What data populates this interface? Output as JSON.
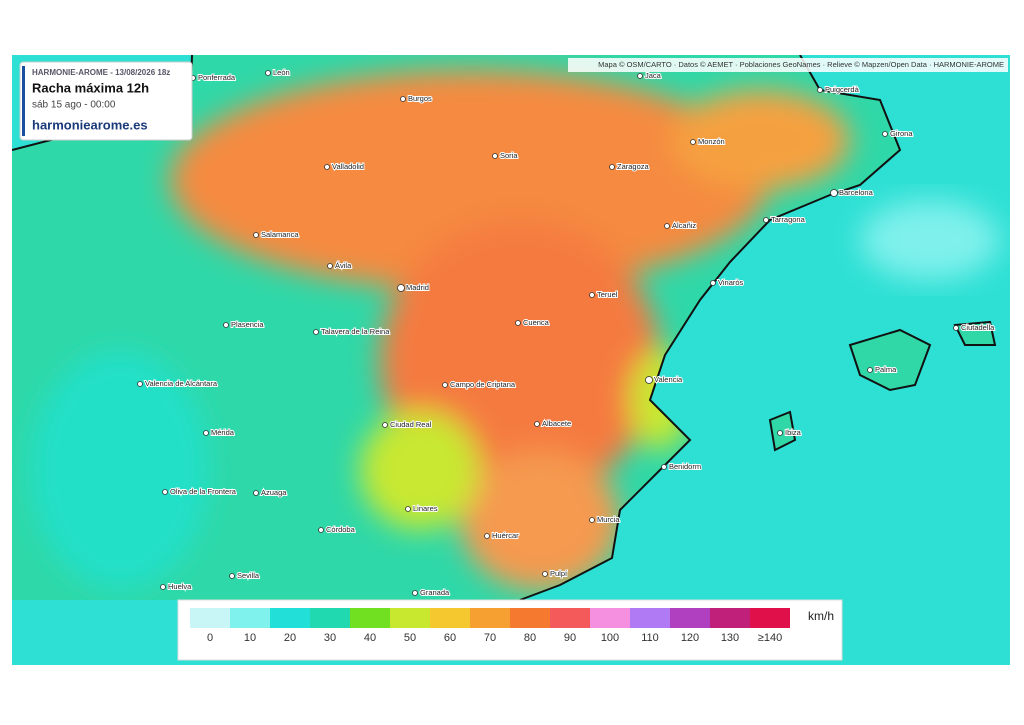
{
  "header": {
    "model": "HARMONIE-AROME - 13/08/2026 18z",
    "title": "Racha máxima 12h",
    "time": "sáb 15 ago - 00:00",
    "site": "harmoniearome.es"
  },
  "attribution": "Mapa © OSM/CARTO · Datos © AEMET · Poblaciones GeoNames · Relieve © Mapzen/Open Data · HARMONIE-AROME",
  "cities": [
    "Ponferrada",
    "León",
    "Burgos",
    "Jaca",
    "Puigcerdà",
    "Soria",
    "Monzón",
    "Girona",
    "Valladolid",
    "Zaragoza",
    "Barcelona",
    "Alcañiz",
    "Tarragona",
    "Salamanca",
    "Ávila",
    "Vinaròs",
    "Madrid",
    "Teruel",
    "Cuenca",
    "Plasencia",
    "Talavera de la Reina",
    "Ciutadella",
    "Palma",
    "Valencia",
    "Valencia de Alcántara",
    "Campo de Criptana",
    "Ibiza",
    "Ciudad Real",
    "Albacete",
    "Mérida",
    "Benidorm",
    "Oliva de la Frontera",
    "Azuaga",
    "Linares",
    "Murcia",
    "Córdoba",
    "Huércar",
    "Sevilla",
    "Pulpí",
    "Huelva",
    "Granada"
  ],
  "legend": {
    "unit": "km/h",
    "items": [
      {
        "label": "0",
        "color": "#c8f5f5"
      },
      {
        "label": "10",
        "color": "#80f2ee"
      },
      {
        "label": "20",
        "color": "#22e0d8"
      },
      {
        "label": "30",
        "color": "#20d9b0"
      },
      {
        "label": "40",
        "color": "#70e020"
      },
      {
        "label": "50",
        "color": "#c8e830"
      },
      {
        "label": "60",
        "color": "#f5c830"
      },
      {
        "label": "70",
        "color": "#f5a030"
      },
      {
        "label": "80",
        "color": "#f57a30"
      },
      {
        "label": "90",
        "color": "#f55a5a"
      },
      {
        "label": "100",
        "color": "#f590e0"
      },
      {
        "label": "110",
        "color": "#b07af5"
      },
      {
        "label": "120",
        "color": "#b040c0"
      },
      {
        "label": "130",
        "color": "#c0207a"
      },
      {
        "label": "≥140",
        "color": "#e0104a"
      }
    ]
  }
}
